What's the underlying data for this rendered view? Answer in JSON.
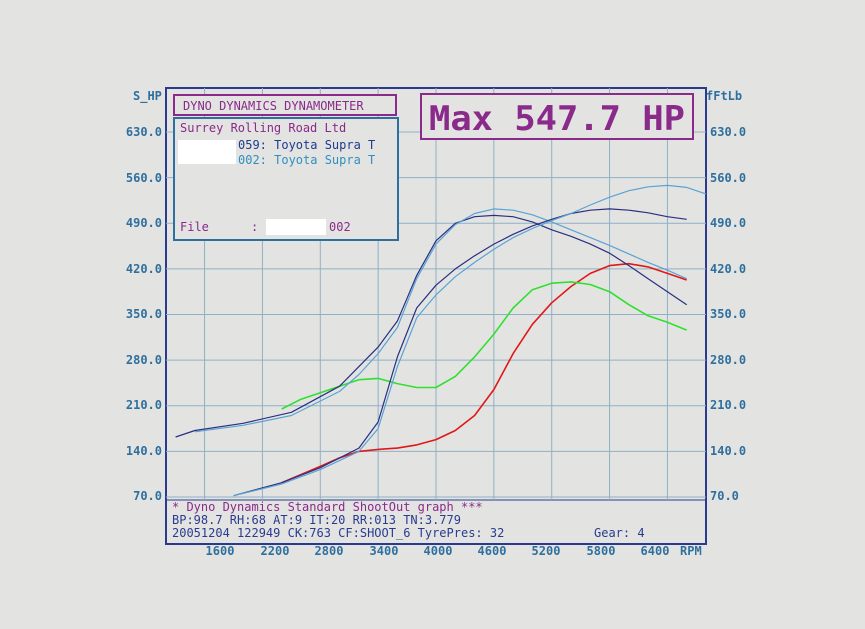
{
  "colors": {
    "background": "#e3e4e2",
    "grid": "#8fb0c4",
    "frame": "#2a3b8f",
    "axis_text": "#2f6f9e",
    "magenta": "#8a2a8a",
    "info_text": "#1e4f9a"
  },
  "header": {
    "dyno_label": "DYNO DYNAMICS DYNAMOMETER",
    "max_label": "Max 547.7 HP"
  },
  "info_box": {
    "company": "Surrey Rolling Road Ltd",
    "run1": "059: Toyota Supra T",
    "run2": "002: Toyota Supra T",
    "file_label": "File",
    "file_sep": ":",
    "file_value": "002"
  },
  "footer": {
    "line1": "* Dyno Dynamics Standard ShootOut graph ***",
    "line2": "BP:98.7  RH:68 AT:9  IT:20  RR:013 TN:3.779",
    "line3a": "20051204 122949 CK:763 CF:SHOOT_6  TyrePres: 32",
    "line3b": "Gear: 4"
  },
  "chart_data": {
    "type": "line",
    "title": "",
    "left_axis_label": "S_HP",
    "right_axis_label": "fFtLb",
    "x_unit": "RPM",
    "xlim": [
      1200,
      6800
    ],
    "ylim": [
      70,
      630
    ],
    "grid": true,
    "left_ticks": [
      "630.0",
      "560.0",
      "490.0",
      "420.0",
      "350.0",
      "280.0",
      "210.0",
      "140.0",
      "70.0"
    ],
    "right_ticks": [
      "630.0",
      "560.0",
      "490.0",
      "420.0",
      "350.0",
      "280.0",
      "210.0",
      "140.0",
      "70.0"
    ],
    "x_ticks": [
      "1600",
      "2200",
      "2800",
      "3400",
      "4000",
      "4600",
      "5200",
      "5800",
      "6400"
    ],
    "series": [
      {
        "color": "#e01818",
        "x": [
          2400,
          2800,
          3000,
          3200,
          3400,
          3600,
          3800,
          4000,
          4200,
          4400,
          4600,
          4800,
          5000,
          5200,
          5400,
          5600,
          5800,
          6000,
          6200,
          6400,
          6600
        ],
        "values": [
          92,
          117,
          130,
          140,
          143,
          145,
          150,
          158,
          172,
          195,
          235,
          290,
          335,
          368,
          393,
          413,
          425,
          428,
          423,
          413,
          403
        ]
      },
      {
        "color": "#2fe02f",
        "x": [
          2400,
          2600,
          2800,
          3000,
          3200,
          3400,
          3600,
          3800,
          4000,
          4200,
          4400,
          4600,
          4800,
          5000,
          5200,
          5400,
          5600,
          5800,
          6000,
          6200,
          6400,
          6600
        ],
        "values": [
          205,
          220,
          230,
          240,
          250,
          252,
          244,
          238,
          238,
          255,
          285,
          320,
          360,
          388,
          398,
          400,
          396,
          385,
          365,
          348,
          338,
          326
        ]
      },
      {
        "color": "#2a2f80",
        "x": [
          1300,
          1500,
          2000,
          2500,
          3000,
          3200,
          3400,
          3600,
          3700,
          3800,
          4000,
          4200,
          4400,
          4600,
          4800,
          5000,
          5200,
          5400,
          5600,
          5800,
          6000,
          6200,
          6400,
          6600
        ],
        "values": [
          162,
          172,
          183,
          200,
          240,
          270,
          300,
          340,
          375,
          410,
          463,
          490,
          500,
          502,
          500,
          492,
          480,
          470,
          458,
          444,
          425,
          405,
          385,
          365
        ]
      },
      {
        "color": "#5aa2d4",
        "x": [
          1500,
          2000,
          2500,
          3000,
          3200,
          3400,
          3600,
          3700,
          3800,
          4000,
          4200,
          4400,
          4600,
          4800,
          5000,
          5200,
          5400,
          5600,
          5800,
          6000,
          6200,
          6400,
          6600
        ],
        "values": [
          170,
          180,
          195,
          232,
          258,
          290,
          330,
          368,
          405,
          458,
          488,
          505,
          512,
          510,
          503,
          492,
          480,
          468,
          456,
          443,
          430,
          418,
          405
        ]
      },
      {
        "color": "#2a2f80",
        "x": [
          1900,
          2400,
          2800,
          3200,
          3400,
          3600,
          3800,
          4000,
          4200,
          4400,
          4600,
          4800,
          5000,
          5200,
          5400,
          5600,
          5800,
          6000,
          6200,
          6400,
          6600
        ],
        "values": [
          72,
          92,
          115,
          145,
          185,
          285,
          360,
          395,
          420,
          440,
          458,
          473,
          486,
          496,
          505,
          510,
          512,
          510,
          506,
          500,
          496
        ]
      },
      {
        "color": "#5aa2d4",
        "x": [
          1900,
          2400,
          2800,
          3200,
          3400,
          3600,
          3800,
          4000,
          4200,
          4400,
          4600,
          4800,
          5000,
          5200,
          5400,
          5600,
          5800,
          6000,
          6200,
          6400,
          6600,
          6800
        ],
        "values": [
          72,
          90,
          112,
          140,
          175,
          270,
          345,
          380,
          408,
          430,
          450,
          468,
          482,
          494,
          505,
          518,
          530,
          540,
          546,
          548,
          545,
          535
        ]
      }
    ]
  }
}
